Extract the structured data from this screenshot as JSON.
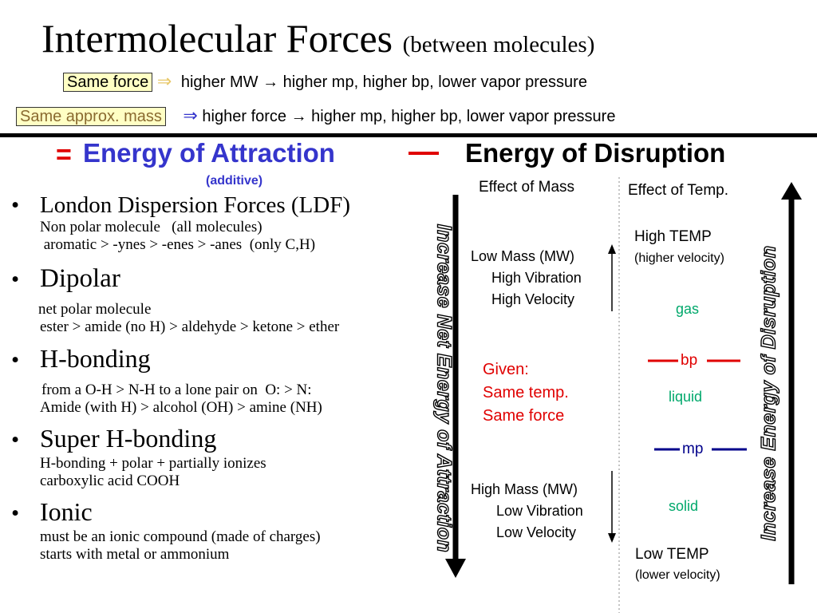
{
  "title": {
    "main": "Intermolecular Forces",
    "sub": "(between molecules)"
  },
  "rule1": {
    "boxed": "Same force",
    "arrow": "⇒",
    "text": "higher MW → higher mp, higher bp, lower vapor pressure"
  },
  "rule2": {
    "boxed": "Same approx. mass",
    "arrow": "⇒",
    "text": "higher force → higher mp, higher bp, lower vapor pressure"
  },
  "equation": {
    "equals": "=",
    "attraction": "Energy of Attraction",
    "dash": "—",
    "disruption": "Energy of Disruption",
    "additive": "(additive)"
  },
  "forces": [
    {
      "name": "London Dispersion Forces (LDF)",
      "details": [
        "Non polar molecule   (all molecules)",
        " aromatic > -ynes > -enes > -anes  (only C,H)"
      ]
    },
    {
      "name": "Dipolar",
      "details": [
        "net polar molecule",
        "ester > amide (no H) > aldehyde > ketone > ether"
      ]
    },
    {
      "name": "H-bonding",
      "details": [
        "from a O-H > N-H to a lone pair on  O: > N:",
        "Amide (with H) > alcohol (OH) > amine (NH)"
      ]
    },
    {
      "name": "Super H-bonding",
      "details": [
        "H-bonding + polar + partially ionizes",
        "carboxylic acid COOH"
      ]
    },
    {
      "name": "Ionic",
      "details": [
        "must be an ionic compound (made of charges)",
        "starts with metal or ammonium"
      ]
    }
  ],
  "bullet_char": "•",
  "vertical_left": "Increase Net Energy of Attraction",
  "vertical_right": "Increase Energy of Disruption",
  "mass": {
    "header": "Effect of Mass",
    "low": [
      "Low Mass (MW)",
      "High Vibration",
      "High Velocity"
    ],
    "given": [
      "Given:",
      "Same temp.",
      "Same force"
    ],
    "high": [
      "High Mass (MW)",
      "Low Vibration",
      "Low Velocity"
    ]
  },
  "temp": {
    "header": "Effect of Temp.",
    "high": "High TEMP",
    "high_sub": "(higher velocity)",
    "gas": "gas",
    "bp": "bp",
    "liquid": "liquid",
    "mp": "mp",
    "solid": "solid",
    "low": "Low TEMP",
    "low_sub": "(lower velocity)"
  },
  "colors": {
    "blue": "#3535cc",
    "red": "#e00000",
    "green": "#00a86b",
    "navy": "#00008b",
    "highlight": "#ffffc4"
  }
}
